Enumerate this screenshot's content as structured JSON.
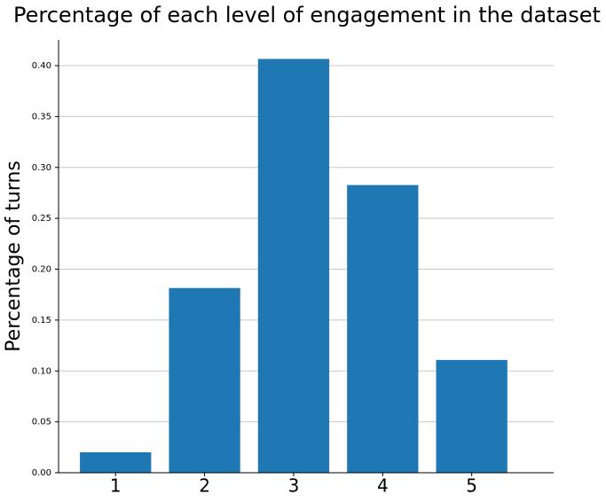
{
  "chart_data": {
    "type": "bar",
    "title": "Percentage of each level of engagement in the dataset",
    "y_label": "Percentage of turns",
    "categories": [
      "1",
      "2",
      "3",
      "4",
      "5"
    ],
    "values": [
      0.0201,
      0.1815,
      0.4066,
      0.2827,
      0.1108
    ],
    "color": "#1f77b4",
    "ylim": [
      0,
      0.4253
    ],
    "yticks": [
      {
        "value": 0,
        "label": "0.00"
      },
      {
        "value": 0.05,
        "label": "0.05"
      },
      {
        "value": 0.1,
        "label": "0.10"
      },
      {
        "value": 0.15,
        "label": "0.15"
      },
      {
        "value": 0.2,
        "label": "0.20"
      },
      {
        "value": 0.25,
        "label": "0.25"
      },
      {
        "value": 0.3,
        "label": "0.30"
      },
      {
        "value": 0.35,
        "label": "0.35"
      },
      {
        "value": 0.4,
        "label": "0.40"
      }
    ],
    "grid": true
  }
}
